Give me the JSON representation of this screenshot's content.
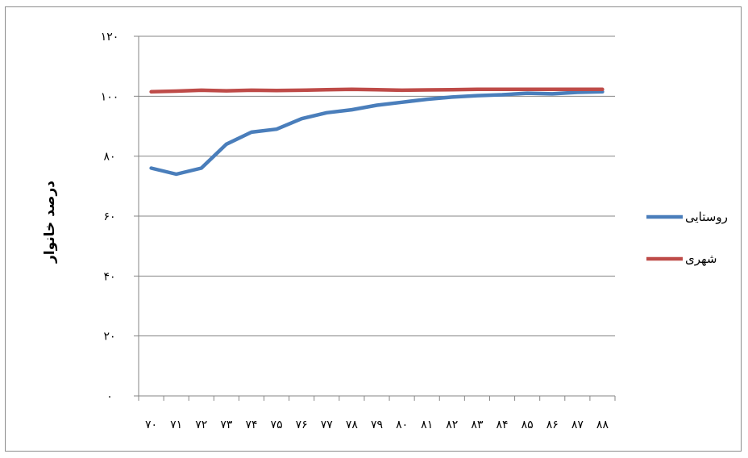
{
  "chart_data": {
    "type": "line",
    "title": "",
    "xlabel": "",
    "ylabel": "درصد خانوار",
    "categories": [
      "۷۰",
      "۷۱",
      "۷۲",
      "۷۳",
      "۷۴",
      "۷۵",
      "۷۶",
      "۷۷",
      "۷۸",
      "۷۹",
      "۸۰",
      "۸۱",
      "۸۲",
      "۸۳",
      "۸۴",
      "۸۵",
      "۸۶",
      "۸۷",
      "۸۸"
    ],
    "y_ticks": [
      {
        "value": 0,
        "label": "۰"
      },
      {
        "value": 20,
        "label": "۲۰"
      },
      {
        "value": 40,
        "label": "۴۰"
      },
      {
        "value": 60,
        "label": "۶۰"
      },
      {
        "value": 80,
        "label": "۸۰"
      },
      {
        "value": 100,
        "label": "۱۰۰"
      },
      {
        "value": 120,
        "label": "۱۲۰"
      }
    ],
    "ylim": [
      0,
      120
    ],
    "grid": true,
    "legend_position": "right",
    "series": [
      {
        "name": "روستایی",
        "color": "#4a7ebb",
        "values": [
          76,
          74,
          76,
          84,
          88,
          89,
          92.5,
          94.5,
          95.5,
          97,
          98,
          99,
          99.7,
          100.2,
          100.5,
          101,
          100.8,
          101.3,
          101.5
        ]
      },
      {
        "name": "شهری",
        "color": "#be4b48",
        "values": [
          101.5,
          101.7,
          102,
          101.8,
          102,
          101.9,
          102,
          102.2,
          102.3,
          102.2,
          102,
          102.1,
          102.2,
          102.3,
          102.3,
          102.3,
          102.3,
          102.3,
          102.3
        ]
      }
    ]
  }
}
